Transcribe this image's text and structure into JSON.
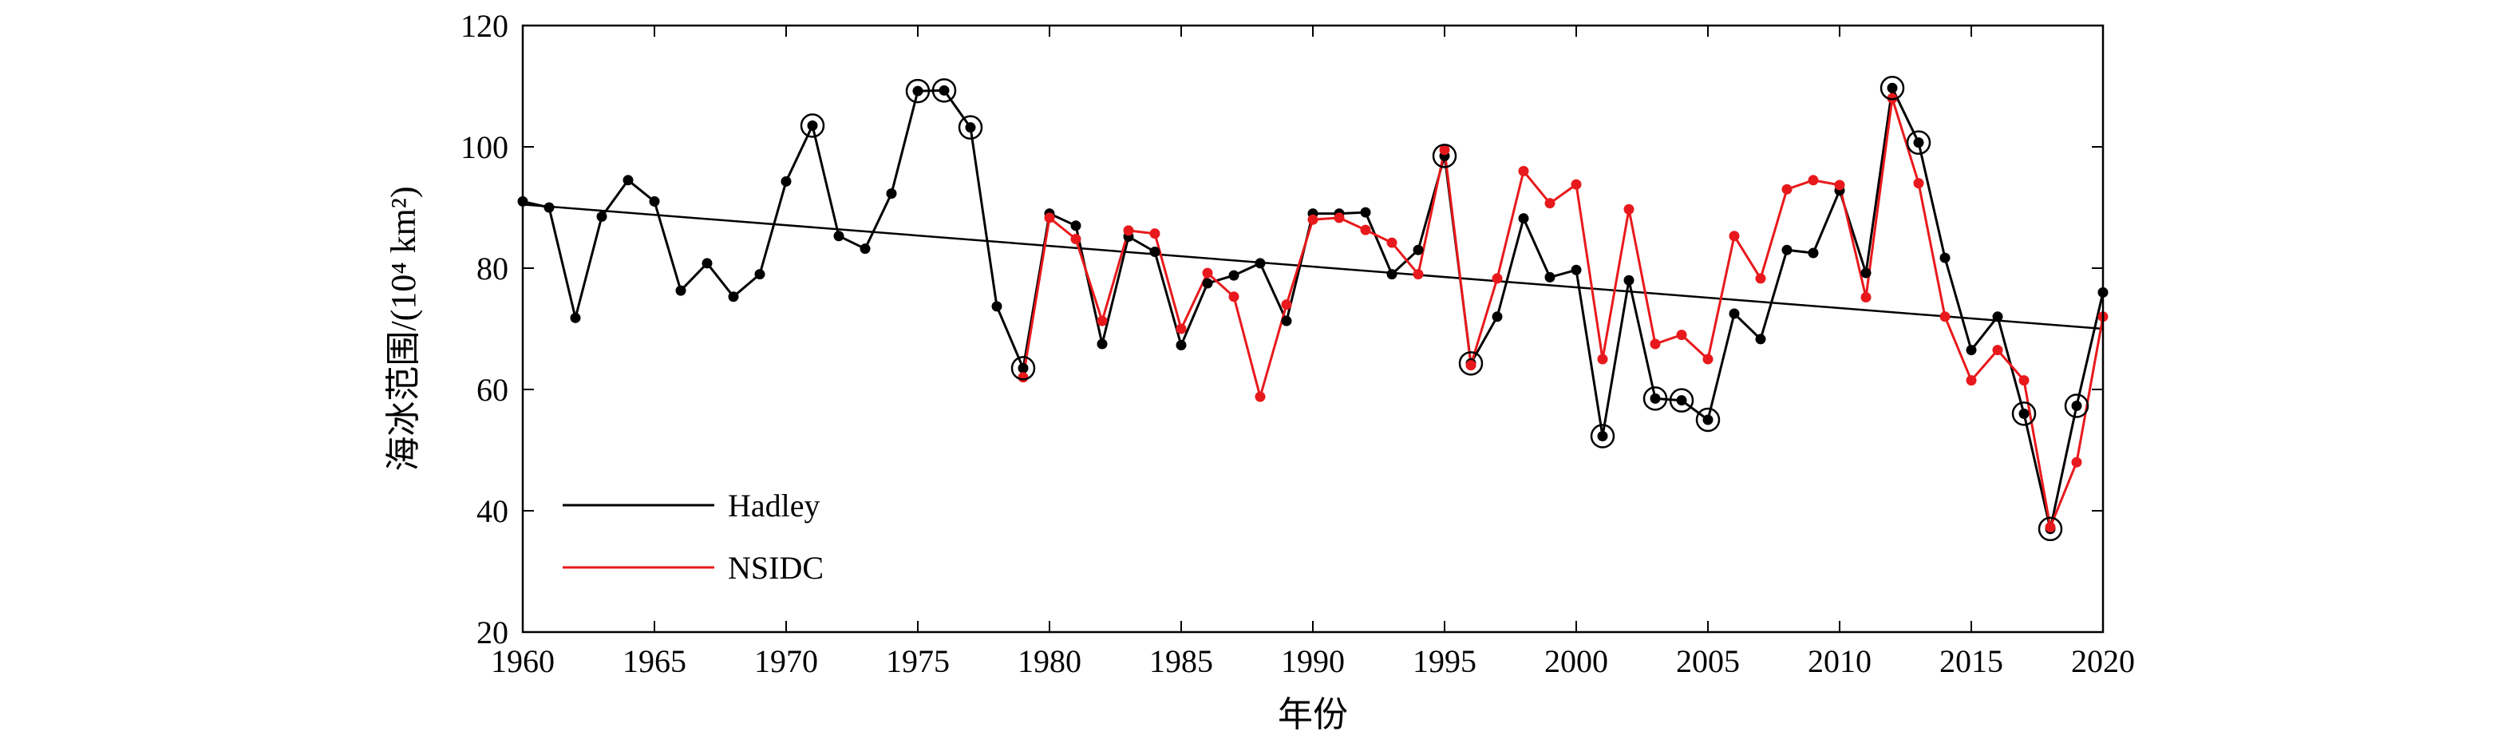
{
  "chart_data": {
    "type": "line",
    "xlabel": "年份",
    "ylabel": "海冰范围/(10⁴ km²)",
    "xlim": [
      1960,
      2020
    ],
    "ylim": [
      20,
      120
    ],
    "xticks": [
      1960,
      1965,
      1970,
      1975,
      1980,
      1985,
      1990,
      1995,
      2000,
      2005,
      2010,
      2015,
      2020
    ],
    "yticks": [
      20,
      40,
      60,
      80,
      100,
      120
    ],
    "grid": false,
    "legend_position": "bottom-left",
    "series": [
      {
        "name": "Hadley",
        "color": "#000000",
        "x": [
          1960,
          1961,
          1962,
          1963,
          1964,
          1965,
          1966,
          1967,
          1968,
          1969,
          1970,
          1971,
          1972,
          1973,
          1974,
          1975,
          1976,
          1977,
          1978,
          1979,
          1980,
          1981,
          1982,
          1983,
          1984,
          1985,
          1986,
          1987,
          1988,
          1989,
          1990,
          1991,
          1992,
          1993,
          1994,
          1995,
          1996,
          1997,
          1998,
          1999,
          2000,
          2001,
          2002,
          2003,
          2004,
          2005,
          2006,
          2007,
          2008,
          2009,
          2010,
          2011,
          2012,
          2013,
          2014,
          2015,
          2016,
          2017,
          2018,
          2019,
          2020
        ],
        "values": [
          91.0,
          90.0,
          71.8,
          88.5,
          94.5,
          91.0,
          76.3,
          80.8,
          75.3,
          79.0,
          94.3,
          103.5,
          85.3,
          83.2,
          92.3,
          109.2,
          109.3,
          103.2,
          73.7,
          63.5,
          89.0,
          87.0,
          67.5,
          85.2,
          82.7,
          67.3,
          77.5,
          78.8,
          80.8,
          71.3,
          89.0,
          89.0,
          89.2,
          79.0,
          83.0,
          98.5,
          64.3,
          72.0,
          88.2,
          78.5,
          79.7,
          52.3,
          78.0,
          58.5,
          58.2,
          55.0,
          72.5,
          68.3,
          83.0,
          82.5,
          92.8,
          79.2,
          109.7,
          100.7,
          81.7,
          66.5,
          72.0,
          56.0,
          37.0,
          57.3,
          76.0
        ]
      },
      {
        "name": "NSIDC",
        "color": "#e8191c",
        "x": [
          1979,
          1980,
          1981,
          1982,
          1983,
          1984,
          1985,
          1986,
          1987,
          1988,
          1989,
          1990,
          1991,
          1992,
          1993,
          1994,
          1995,
          1996,
          1997,
          1998,
          1999,
          2000,
          2001,
          2002,
          2003,
          2004,
          2005,
          2006,
          2007,
          2008,
          2009,
          2010,
          2011,
          2012,
          2013,
          2014,
          2015,
          2016,
          2017,
          2018,
          2019,
          2020
        ],
        "values": [
          62.0,
          88.3,
          84.8,
          71.3,
          86.2,
          85.7,
          70.0,
          79.2,
          75.3,
          58.8,
          74.0,
          88.0,
          88.3,
          86.3,
          84.2,
          79.0,
          99.5,
          64.0,
          78.3,
          96.0,
          90.7,
          93.8,
          65.0,
          89.7,
          67.5,
          69.0,
          65.0,
          85.3,
          78.3,
          93.0,
          94.5,
          93.7,
          75.2,
          108.0,
          94.0,
          72.0,
          61.5,
          66.5,
          61.5,
          37.3,
          48.0,
          72.0
        ]
      }
    ],
    "trend_line": {
      "x": [
        1960,
        2020
      ],
      "values": [
        90.5,
        70.0
      ]
    },
    "highlighted_years": [
      1971,
      1975,
      1976,
      1977,
      1979,
      1995,
      1996,
      2001,
      2003,
      2004,
      2005,
      2012,
      2013,
      2017,
      2018,
      2019
    ]
  }
}
